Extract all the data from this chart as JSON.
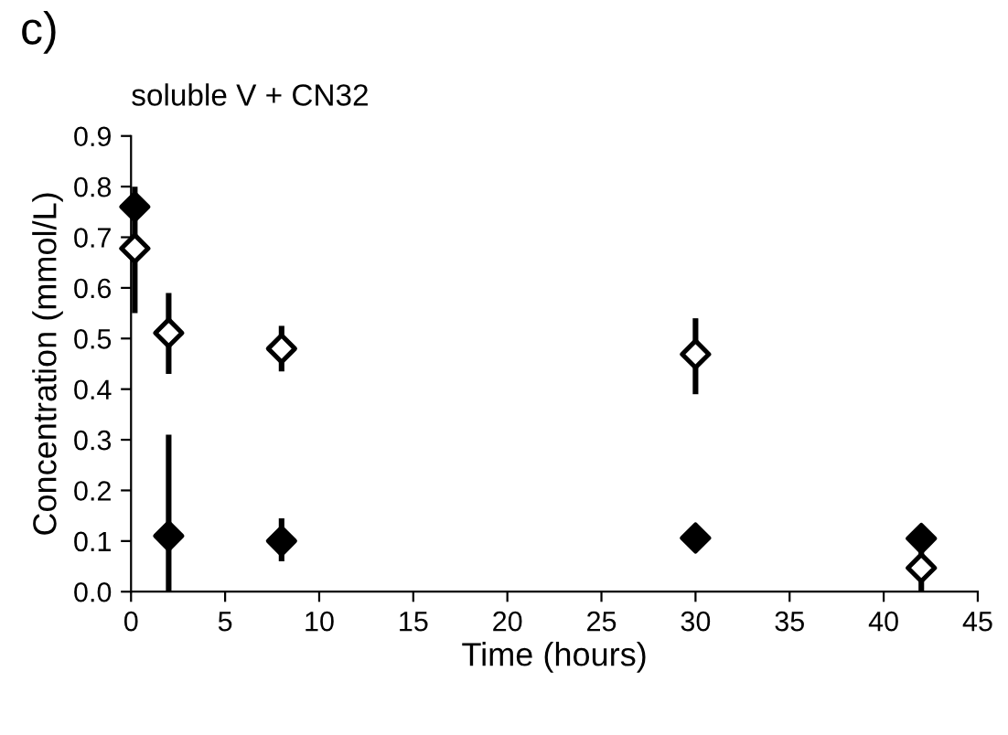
{
  "chart_data": {
    "type": "scatter",
    "title": "soluble V + CN32",
    "xlabel": "Time (hours)",
    "ylabel": "Concentration (mmol/L)",
    "annotations": [
      "c)"
    ],
    "series": [
      {
        "color": "#000000",
        "x": [
          0.2,
          2,
          8,
          30,
          42
        ],
        "values": [
          0.76,
          0.11,
          0.1,
          0.106,
          0.105
        ],
        "errors": [
          [
            0.55,
            0.8
          ],
          [
            0.0,
            0.31
          ],
          [
            0.06,
            0.145
          ],
          null,
          [
            0.08,
            0.13
          ]
        ]
      },
      {
        "color": "#000000",
        "x": [
          0.2,
          2,
          8,
          30,
          42
        ],
        "values": [
          0.678,
          0.511,
          0.48,
          0.469,
          0.047
        ],
        "errors": [
          null,
          [
            0.43,
            0.59
          ],
          [
            0.435,
            0.525
          ],
          [
            0.39,
            0.54
          ],
          [
            0.0,
            0.08
          ]
        ]
      }
    ],
    "marker": "diamond",
    "grid": false,
    "legend": false,
    "xlim": [
      0,
      45
    ],
    "xticks": [
      0,
      5,
      10,
      15,
      20,
      25,
      30,
      35,
      40,
      45
    ],
    "ylim": [
      0,
      0.9
    ],
    "yticks": [
      {
        "value": 0,
        "label": "0.0"
      },
      0.1,
      0.2,
      0.3,
      0.4,
      0.5,
      0.6,
      0.7,
      0.8,
      0.9
    ]
  }
}
